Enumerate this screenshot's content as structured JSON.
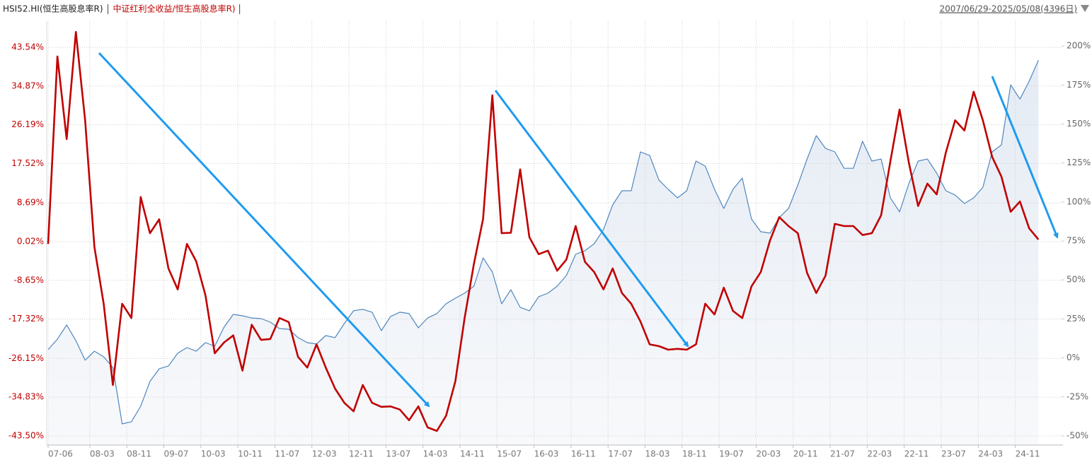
{
  "chart_data": {
    "type": "line",
    "date_range": "2007/06/29-2025/05/08(4396日)",
    "x": [
      "07-06",
      "07-08",
      "07-10",
      "07-12",
      "08-02",
      "08-04",
      "08-06",
      "08-08",
      "08-10",
      "08-12",
      "09-02",
      "09-04",
      "09-06",
      "09-08",
      "09-10",
      "09-12",
      "10-02",
      "10-04",
      "10-06",
      "10-08",
      "10-10",
      "10-12",
      "11-02",
      "11-04",
      "11-06",
      "11-08",
      "11-10",
      "11-12",
      "12-02",
      "12-04",
      "12-06",
      "12-08",
      "12-10",
      "12-12",
      "13-02",
      "13-04",
      "13-06",
      "13-08",
      "13-10",
      "13-12",
      "14-02",
      "14-04",
      "14-06",
      "14-08",
      "14-10",
      "14-12",
      "15-02",
      "15-04",
      "15-06",
      "15-08",
      "15-10",
      "15-12",
      "16-02",
      "16-04",
      "16-06",
      "16-08",
      "16-10",
      "16-12",
      "17-02",
      "17-04",
      "17-06",
      "17-08",
      "17-10",
      "17-12",
      "18-02",
      "18-04",
      "18-06",
      "18-08",
      "18-10",
      "18-12",
      "19-02",
      "19-04",
      "19-06",
      "19-08",
      "19-10",
      "19-12",
      "20-02",
      "20-04",
      "20-06",
      "20-08",
      "20-10",
      "20-12",
      "21-02",
      "21-04",
      "21-06",
      "21-08",
      "21-10",
      "21-12",
      "22-02",
      "22-04",
      "22-06",
      "22-08",
      "22-10",
      "22-12",
      "23-02",
      "23-04",
      "23-06",
      "23-08",
      "23-10",
      "23-12",
      "24-02",
      "24-04",
      "24-06",
      "24-08",
      "24-10",
      "24-12",
      "25-02",
      "25-04"
    ],
    "xlim": [
      "07-06",
      "25-09"
    ],
    "xticks": [
      "07-06",
      "08-03",
      "08-11",
      "09-07",
      "10-03",
      "10-11",
      "11-07",
      "12-03",
      "12-11",
      "13-07",
      "14-03",
      "14-11",
      "15-07",
      "16-03",
      "16-11",
      "17-07",
      "18-03",
      "18-11",
      "19-07",
      "20-03",
      "20-11",
      "21-07",
      "22-03",
      "22-11",
      "23-07",
      "24-03",
      "24-11"
    ],
    "ylim": [
      -45.56,
      49.4
    ],
    "yticks": [
      {
        "value": 43.54,
        "label": "43.54%"
      },
      {
        "value": 34.87,
        "label": "34.87%"
      },
      {
        "value": 26.19,
        "label": "26.19%"
      },
      {
        "value": 17.52,
        "label": "17.52%"
      },
      {
        "value": 8.69,
        "label": "8.69%"
      },
      {
        "value": 0.02,
        "label": "0.02%"
      },
      {
        "value": -8.65,
        "label": "-8.65%"
      },
      {
        "value": -17.32,
        "label": "-17.32%"
      },
      {
        "value": -26.15,
        "label": "-26.15%"
      },
      {
        "value": -34.83,
        "label": "-34.83%"
      },
      {
        "value": -43.5,
        "label": "-43.50%"
      }
    ],
    "y2lim": [
      -55.9,
      215.9
    ],
    "y2ticks": [
      {
        "value": 200,
        "label": "200%"
      },
      {
        "value": 175,
        "label": "175%"
      },
      {
        "value": 150,
        "label": "150%"
      },
      {
        "value": 125,
        "label": "125%"
      },
      {
        "value": 100,
        "label": "100%"
      },
      {
        "value": 75,
        "label": "75%"
      },
      {
        "value": 50,
        "label": "50%"
      },
      {
        "value": 25,
        "label": "25%"
      },
      {
        "value": 0,
        "label": "0%"
      },
      {
        "value": -25,
        "label": "-25%"
      },
      {
        "value": -50,
        "label": "-50%"
      }
    ],
    "grid": true,
    "series": [
      {
        "name": "HSI52.HI(恒生高股息率R)",
        "color": "#4f87be",
        "axis": "y2",
        "area": true,
        "values": [
          5.3,
          12.0,
          21.1,
          11.1,
          -1.5,
          4.3,
          0.7,
          -6.1,
          -42.3,
          -41.0,
          -31.0,
          -15.1,
          -7.0,
          -5.2,
          3.0,
          6.6,
          4.3,
          9.8,
          7.5,
          19.7,
          27.9,
          27.0,
          25.6,
          25.2,
          22.9,
          18.8,
          18.4,
          13.0,
          9.8,
          8.9,
          14.3,
          13.0,
          22.0,
          30.2,
          31.1,
          29.3,
          17.5,
          26.5,
          29.3,
          28.4,
          19.3,
          25.6,
          28.4,
          34.7,
          38.3,
          41.5,
          46.0,
          64.1,
          55.1,
          34.7,
          43.7,
          32.4,
          30.2,
          39.2,
          41.5,
          46.0,
          52.8,
          66.4,
          68.7,
          73.2,
          82.2,
          98.1,
          107.2,
          107.2,
          132.1,
          129.8,
          114.0,
          108.1,
          102.6,
          107.2,
          126.2,
          123.0,
          108.1,
          95.8,
          108.1,
          115.3,
          89.0,
          80.9,
          80.0,
          90.0,
          95.8,
          110.8,
          127.5,
          142.5,
          134.3,
          132.1,
          121.6,
          121.6,
          138.9,
          126.2,
          127.5,
          102.6,
          93.6,
          111.7,
          126.2,
          127.5,
          118.5,
          107.2,
          104.4,
          99.0,
          102.6,
          109.4,
          132.1,
          136.6,
          175.1,
          166.0,
          177.4,
          190.9
        ]
      },
      {
        "name": "中证红利全收益/恒生高股息率R)",
        "color": "#c00000",
        "axis": "y",
        "values": [
          -0.5,
          41.5,
          23,
          47.0,
          27.2,
          -1.2,
          -13.9,
          -32.1,
          -13.9,
          -17.1,
          10,
          1.9,
          5,
          -6.0,
          -10.7,
          -0.5,
          -4.4,
          -12,
          -25.0,
          -22.6,
          -21,
          -28.9,
          -18.6,
          -22,
          -21.8,
          -17.1,
          -18,
          -25.8,
          -28.2,
          -23,
          -28.2,
          -32.9,
          -36.1,
          -38,
          -32.1,
          -36.1,
          -37,
          -36.9,
          -37.6,
          -40,
          -36.9,
          -41.6,
          -42.4,
          -39,
          -31.3,
          -17.1,
          -5,
          5.1,
          32.8,
          1.9,
          2,
          16.2,
          1,
          -2.8,
          -2.0,
          -6.5,
          -4,
          3.5,
          -4.5,
          -6.8,
          -10.7,
          -6.0,
          -11.5,
          -13.9,
          -17.9,
          -23,
          -23.4,
          -24.2,
          -24,
          -24.2,
          -23,
          -13.9,
          -16.3,
          -10.3,
          -15.5,
          -17.1,
          -10,
          -6.8,
          0.3,
          5.5,
          3.5,
          1.9,
          -7,
          -11.5,
          -7.6,
          4,
          3.5,
          3.5,
          1.5,
          1.9,
          5.9,
          18,
          29.6,
          17.7,
          8,
          13.0,
          10.6,
          20,
          27.2,
          24.9,
          33.6,
          27.2,
          19,
          14.6,
          6.7,
          9.0,
          3,
          0.5
        ]
      }
    ]
  }
}
